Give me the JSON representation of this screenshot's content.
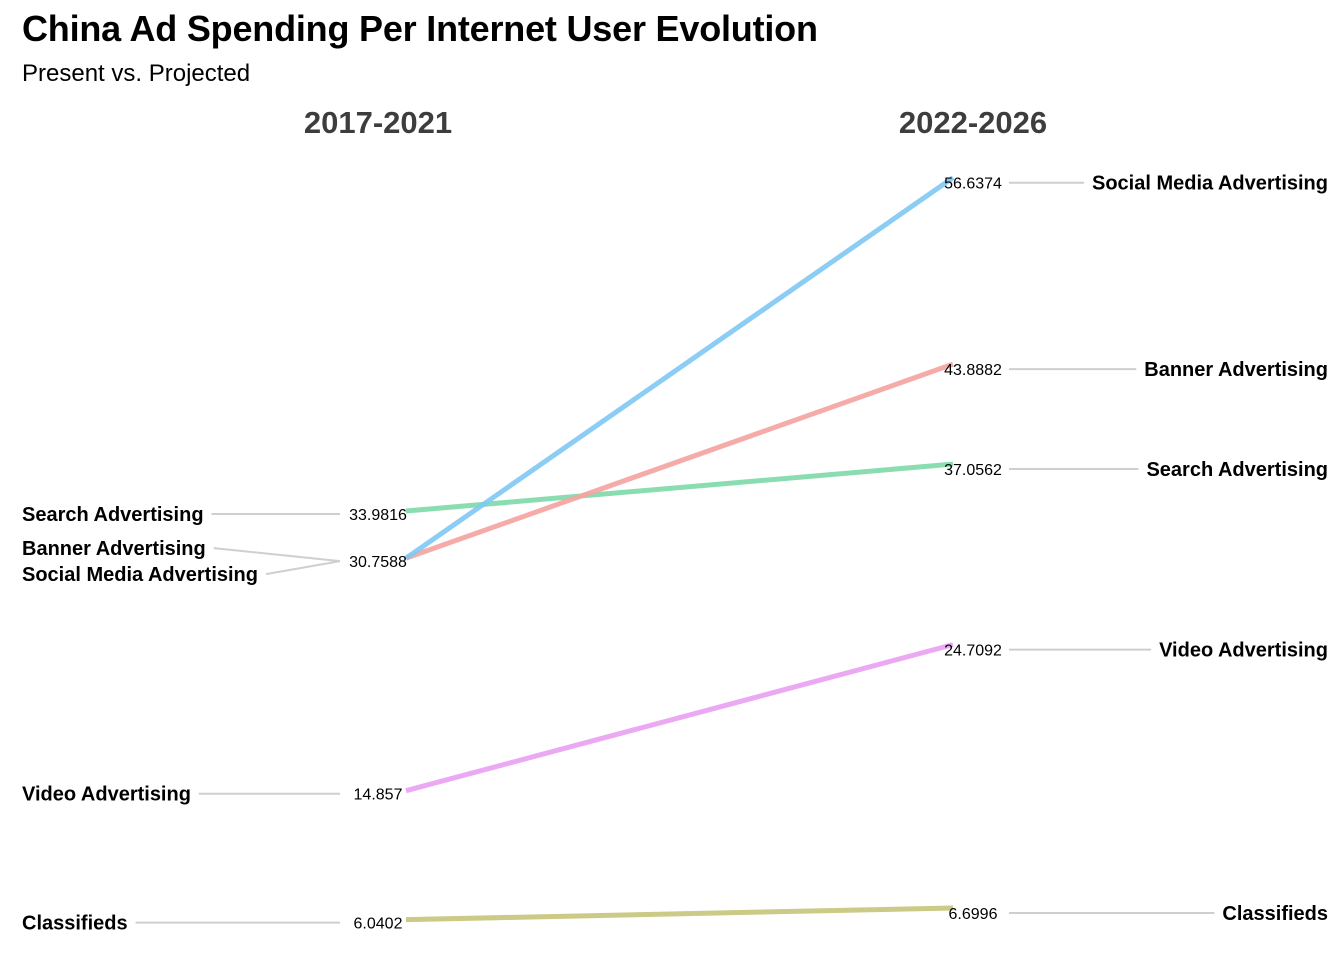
{
  "chart_data": {
    "type": "line",
    "title": "China Ad Spending Per Internet User Evolution",
    "subtitle": "Present vs. Projected",
    "periods": [
      "2017-2021",
      "2022-2026"
    ],
    "series": [
      {
        "name": "Search Advertising",
        "start": 33.9816,
        "end": 37.0562,
        "start_label": "33.9816",
        "end_label": "37.0562",
        "color": "#7dd8a8"
      },
      {
        "name": "Banner Advertising",
        "start": 30.7588,
        "end": 43.8882,
        "start_label": "30.7588",
        "end_label": "43.8882",
        "color": "#f4a3a0"
      },
      {
        "name": "Social Media Advertising",
        "start": 30.7588,
        "end": 56.6374,
        "start_label": "30.7588",
        "end_label": "56.6374",
        "color": "#7ec8f4"
      },
      {
        "name": "Video Advertising",
        "start": 14.857,
        "end": 24.7092,
        "start_label": "14.857",
        "end_label": "24.7092",
        "color": "#e99ef2"
      },
      {
        "name": "Classifieds",
        "start": 6.0402,
        "end": 6.6996,
        "start_label": "6.0402",
        "end_label": "6.6996",
        "color": "#c5c47a"
      }
    ],
    "grid": false,
    "legend": "none"
  }
}
